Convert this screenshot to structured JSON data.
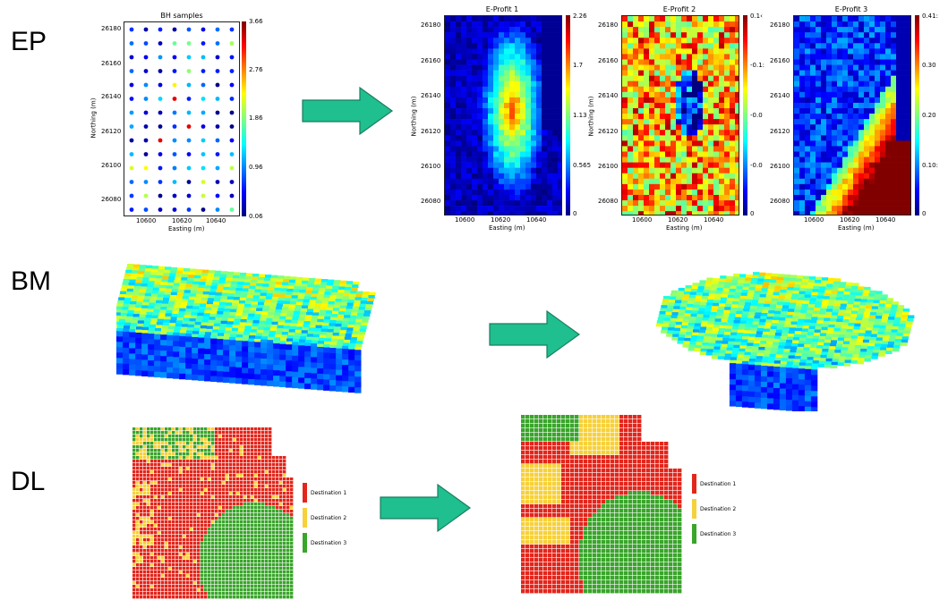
{
  "rows": {
    "ep": "EP",
    "bm": "BM",
    "dl": "DL"
  },
  "ep": {
    "bh": {
      "title": "BH samples",
      "xlabel": "Easting (m)",
      "ylabel": "Northing (m)",
      "xticks": [
        "10600",
        "10620",
        "10640"
      ],
      "yticks": [
        "26180",
        "26160",
        "26140",
        "26120",
        "26100",
        "26080"
      ],
      "cbar": [
        "3.66",
        "2.76",
        "1.86",
        "0.96",
        "0.06"
      ]
    },
    "p1": {
      "title": "E-Profit 1",
      "xlabel": "Easting (m)",
      "ylabel": "Northing (m)",
      "xticks": [
        "10600",
        "10620",
        "10640"
      ],
      "yticks": [
        "26180",
        "26160",
        "26140",
        "26120",
        "26100",
        "26080"
      ],
      "cbar": [
        "2.26",
        "1.7",
        "1.13",
        "0.565",
        "0"
      ]
    },
    "p2": {
      "title": "E-Profit 2",
      "xlabel": "Easting (m)",
      "ylabel": "Northing (m)",
      "xticks": [
        "10600",
        "10620",
        "10640"
      ],
      "yticks": [
        "26180",
        "26160",
        "26140",
        "26120",
        "26100",
        "26080"
      ],
      "cbar": [
        "0.1‹",
        "-0.1:",
        "-0.0",
        "-0.0",
        "0"
      ]
    },
    "p3": {
      "title": "E-Profit 3",
      "xlabel": "Easting (m)",
      "ylabel": "",
      "xticks": [
        "10600",
        "10620",
        "10640"
      ],
      "yticks": [
        "26180",
        "26160",
        "26140",
        "26120",
        "26100",
        "26080"
      ],
      "cbar": [
        "0.41:",
        "0.30",
        "0.20",
        "0.10:",
        "0"
      ]
    }
  },
  "dl": {
    "legend": [
      "Destination 1",
      "Destination 2",
      "Destination 3"
    ]
  },
  "colors": {
    "arrow": "#1fbf8f",
    "arrow_stroke": "#1a7d5f",
    "red": "#e3261c",
    "yellow": "#f7d13a",
    "green": "#3aa52b"
  }
}
